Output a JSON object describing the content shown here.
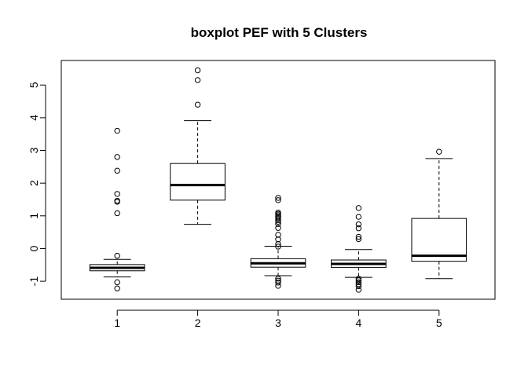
{
  "chart_data": {
    "type": "boxplot",
    "title": "boxplot PEF with 5 Clusters",
    "xlabel": "",
    "ylabel": "",
    "categories": [
      "1",
      "2",
      "3",
      "4",
      "5"
    ],
    "ylim": [
      -1.55,
      5.75
    ],
    "yticks": [
      -1,
      0,
      1,
      2,
      3,
      4,
      5
    ],
    "grid": false,
    "boxes": [
      {
        "category": "1",
        "whisker_low": -0.87,
        "q1": -0.68,
        "median": -0.59,
        "q3": -0.49,
        "whisker_high": -0.33,
        "outliers": [
          3.6,
          2.8,
          2.38,
          1.67,
          1.46,
          1.43,
          1.08,
          -0.22,
          -1.03,
          -1.22
        ]
      },
      {
        "category": "2",
        "whisker_low": 0.74,
        "q1": 1.48,
        "median": 1.94,
        "q3": 2.6,
        "whisker_high": 3.91,
        "outliers": [
          5.45,
          5.15,
          4.4
        ]
      },
      {
        "category": "3",
        "whisker_low": -0.83,
        "q1": -0.57,
        "median": -0.45,
        "q3": -0.31,
        "whisker_high": 0.07,
        "outliers": [
          1.55,
          1.48,
          1.1,
          1.06,
          1.02,
          0.98,
          0.93,
          0.87,
          0.82,
          0.75,
          0.63,
          0.42,
          0.28,
          0.14,
          0.06,
          -0.92,
          -0.98,
          -1.04,
          -1.14
        ]
      },
      {
        "category": "4",
        "whisker_low": -0.88,
        "q1": -0.58,
        "median": -0.47,
        "q3": -0.35,
        "whisker_high": -0.03,
        "outliers": [
          1.24,
          0.97,
          0.74,
          0.62,
          0.36,
          0.29,
          -0.92,
          -0.97,
          -1.03,
          -1.09,
          -1.15,
          -1.26
        ]
      },
      {
        "category": "5",
        "whisker_low": -0.92,
        "q1": -0.39,
        "median": -0.22,
        "q3": 0.92,
        "whisker_high": 2.75,
        "outliers": [
          2.96
        ]
      }
    ]
  }
}
